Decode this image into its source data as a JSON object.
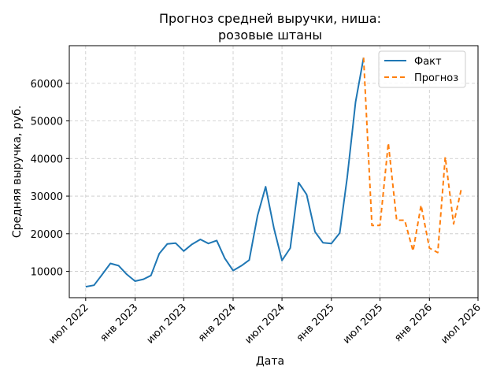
{
  "chart_data": {
    "type": "line",
    "title": [
      "Прогноз средней выручки, ниша:",
      "розовые штаны"
    ],
    "xlabel": "Дата",
    "ylabel": "Средняя выручка, руб.",
    "grid": true,
    "legend_position": "top-right",
    "xlim": [
      "2022-05-01",
      "2026-07-01"
    ],
    "ylim": [
      3000,
      70000
    ],
    "x_ticks": [
      {
        "date": "2022-07-01",
        "label": "июл 2022"
      },
      {
        "date": "2023-01-01",
        "label": "янв 2023"
      },
      {
        "date": "2023-07-01",
        "label": "июл 2023"
      },
      {
        "date": "2024-01-01",
        "label": "янв 2024"
      },
      {
        "date": "2024-07-01",
        "label": "июл 2024"
      },
      {
        "date": "2025-01-01",
        "label": "янв 2025"
      },
      {
        "date": "2025-07-01",
        "label": "июл 2025"
      },
      {
        "date": "2026-01-01",
        "label": "янв 2026"
      },
      {
        "date": "2026-07-01",
        "label": "июл 2026"
      }
    ],
    "y_ticks": [
      10000,
      20000,
      30000,
      40000,
      50000,
      60000
    ],
    "series": [
      {
        "name": "Факт",
        "color": "#1f77b4",
        "style": "solid",
        "points": [
          {
            "x": "2022-07-01",
            "y": 5900
          },
          {
            "x": "2022-08-01",
            "y": 6300
          },
          {
            "x": "2022-09-01",
            "y": 9200
          },
          {
            "x": "2022-10-01",
            "y": 12100
          },
          {
            "x": "2022-11-01",
            "y": 11500
          },
          {
            "x": "2022-12-01",
            "y": 9200
          },
          {
            "x": "2023-01-01",
            "y": 7400
          },
          {
            "x": "2023-02-01",
            "y": 7900
          },
          {
            "x": "2023-03-01",
            "y": 8900
          },
          {
            "x": "2023-04-01",
            "y": 14700
          },
          {
            "x": "2023-05-01",
            "y": 17300
          },
          {
            "x": "2023-06-01",
            "y": 17500
          },
          {
            "x": "2023-07-01",
            "y": 15400
          },
          {
            "x": "2023-08-01",
            "y": 17200
          },
          {
            "x": "2023-09-01",
            "y": 18500
          },
          {
            "x": "2023-10-01",
            "y": 17400
          },
          {
            "x": "2023-11-01",
            "y": 18200
          },
          {
            "x": "2023-12-01",
            "y": 13500
          },
          {
            "x": "2024-01-01",
            "y": 10200
          },
          {
            "x": "2024-02-01",
            "y": 11500
          },
          {
            "x": "2024-03-01",
            "y": 13000
          },
          {
            "x": "2024-04-01",
            "y": 24800
          },
          {
            "x": "2024-05-01",
            "y": 32500
          },
          {
            "x": "2024-06-01",
            "y": 21500
          },
          {
            "x": "2024-07-01",
            "y": 12900
          },
          {
            "x": "2024-08-01",
            "y": 16200
          },
          {
            "x": "2024-09-01",
            "y": 33600
          },
          {
            "x": "2024-10-01",
            "y": 30400
          },
          {
            "x": "2024-11-01",
            "y": 20500
          },
          {
            "x": "2024-12-01",
            "y": 17600
          },
          {
            "x": "2025-01-01",
            "y": 17400
          },
          {
            "x": "2025-02-01",
            "y": 20200
          },
          {
            "x": "2025-03-01",
            "y": 35000
          },
          {
            "x": "2025-04-01",
            "y": 55000
          },
          {
            "x": "2025-05-01",
            "y": 66800
          }
        ]
      },
      {
        "name": "Прогноз",
        "color": "#ff7f0e",
        "style": "dashed",
        "points": [
          {
            "x": "2025-05-01",
            "y": 66800
          },
          {
            "x": "2025-06-01",
            "y": 22200
          },
          {
            "x": "2025-07-01",
            "y": 22200
          },
          {
            "x": "2025-08-01",
            "y": 44100
          },
          {
            "x": "2025-09-01",
            "y": 23600
          },
          {
            "x": "2025-10-01",
            "y": 23600
          },
          {
            "x": "2025-11-01",
            "y": 15400
          },
          {
            "x": "2025-12-01",
            "y": 27600
          },
          {
            "x": "2026-01-01",
            "y": 16200
          },
          {
            "x": "2026-02-01",
            "y": 15000
          },
          {
            "x": "2026-03-01",
            "y": 40400
          },
          {
            "x": "2026-04-01",
            "y": 22600
          },
          {
            "x": "2026-05-01",
            "y": 32300
          }
        ]
      }
    ]
  }
}
